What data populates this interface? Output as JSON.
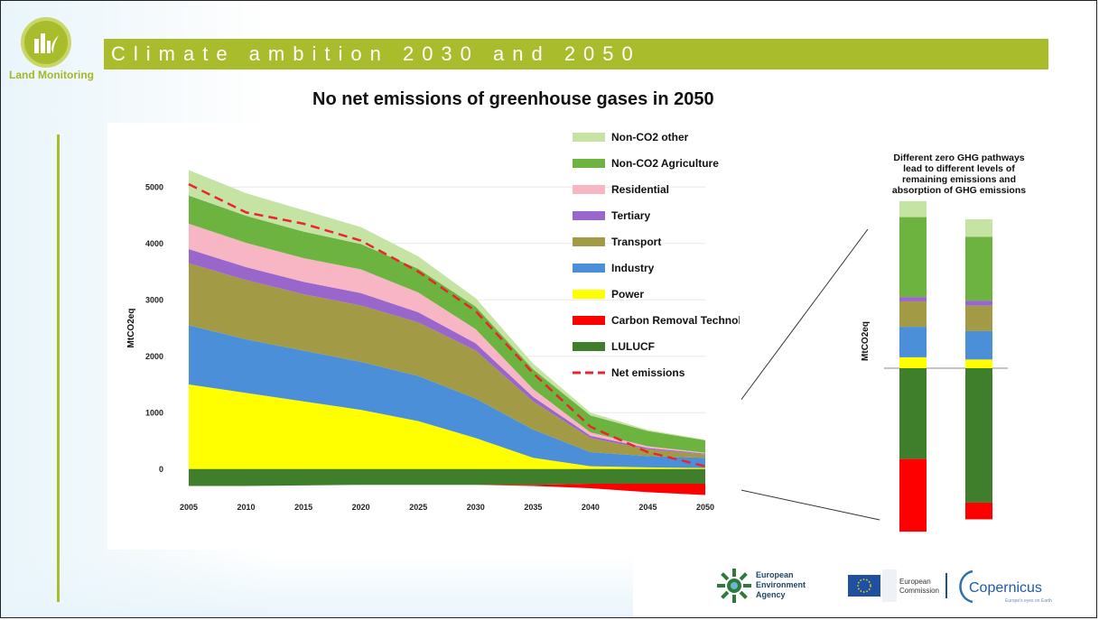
{
  "header": {
    "logo_label": "Land Monitoring",
    "title": "Climate ambition 2030 and 2050"
  },
  "chart_title": "No net emissions of greenhouse gases in 2050",
  "chart_data": [
    {
      "type": "area",
      "ylabel": "MtCO2eq",
      "x": [
        2005,
        2010,
        2015,
        2020,
        2025,
        2030,
        2035,
        2040,
        2045,
        2050
      ],
      "yticks": [
        0,
        1000,
        2000,
        3000,
        4000,
        5000
      ],
      "ylim": [
        -500,
        5500
      ],
      "legend_position": "right",
      "series": [
        {
          "name": "Power",
          "color": "#ffff00",
          "values": [
            1500,
            1350,
            1200,
            1050,
            850,
            550,
            200,
            50,
            30,
            20
          ]
        },
        {
          "name": "Industry",
          "color": "#4a8fd8",
          "values": [
            1050,
            950,
            900,
            850,
            800,
            700,
            500,
            250,
            200,
            180
          ]
        },
        {
          "name": "Transport",
          "color": "#a39a45",
          "values": [
            1100,
            1050,
            1000,
            1000,
            950,
            850,
            500,
            250,
            120,
            60
          ]
        },
        {
          "name": "Tertiary",
          "color": "#9966cc",
          "values": [
            250,
            230,
            220,
            220,
            180,
            130,
            80,
            40,
            25,
            15
          ]
        },
        {
          "name": "Residential",
          "color": "#f8b5c3",
          "values": [
            450,
            430,
            420,
            420,
            350,
            250,
            140,
            60,
            30,
            15
          ]
        },
        {
          "name": "Non-CO2 Agriculture",
          "color": "#6db33f",
          "values": [
            500,
            480,
            470,
            450,
            420,
            400,
            350,
            300,
            270,
            220
          ]
        },
        {
          "name": "Non-CO2 other",
          "color": "#c5e3a3",
          "values": [
            450,
            400,
            380,
            300,
            220,
            150,
            100,
            50,
            20,
            10
          ]
        },
        {
          "name": "Carbon Removal Technologies",
          "color": "#ff0000",
          "values": [
            0,
            0,
            0,
            0,
            0,
            0,
            -20,
            -80,
            -150,
            -200
          ]
        },
        {
          "name": "LULUCF",
          "color": "#3f7f2c",
          "values": [
            -300,
            -300,
            -290,
            -280,
            -280,
            -280,
            -280,
            -260,
            -260,
            -260
          ]
        }
      ],
      "net_emissions": {
        "name": "Net emissions",
        "color": "#e8262a",
        "values": [
          5050,
          4550,
          4350,
          4050,
          3500,
          2800,
          1700,
          750,
          300,
          50
        ]
      }
    },
    {
      "type": "bar",
      "title": "Different zero GHG pathways lead to different levels of remaining emissions and absorption of GHG emissions",
      "ylabel": "MtCO2eq",
      "categories": [
        "",
        ""
      ],
      "series": [
        {
          "name": "Power",
          "color": "#ffff00",
          "values": [
            150,
            120
          ]
        },
        {
          "name": "Industry",
          "color": "#4a8fd8",
          "values": [
            420,
            390
          ]
        },
        {
          "name": "Transport",
          "color": "#a39a45",
          "values": [
            350,
            350
          ]
        },
        {
          "name": "Tertiary",
          "color": "#9966cc",
          "values": [
            60,
            70
          ]
        },
        {
          "name": "Non-CO2 Agriculture",
          "color": "#6db33f",
          "values": [
            1100,
            880
          ]
        },
        {
          "name": "Non-CO2 other",
          "color": "#c5e3a3",
          "values": [
            220,
            240
          ]
        },
        {
          "name": "LULUCF",
          "color": "#3f7f2c",
          "values": [
            -1250,
            -1850
          ]
        },
        {
          "name": "Carbon Removal Technologies",
          "color": "#ff0000",
          "values": [
            -1000,
            -230
          ]
        }
      ]
    }
  ],
  "footer": {
    "eea_line1": "European",
    "eea_line2": "Environment",
    "eea_line3": "Agency",
    "ec_line1": "European",
    "ec_line2": "Commission",
    "copernicus": "Copernicus",
    "copernicus_tagline": "Europe's eyes on Earth"
  }
}
